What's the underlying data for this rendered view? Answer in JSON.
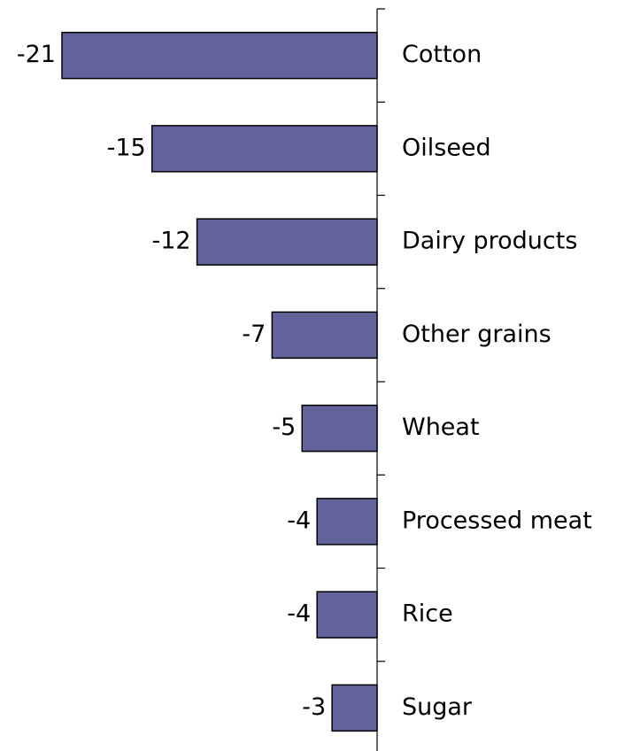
{
  "chart_data": {
    "type": "bar",
    "orientation": "horizontal",
    "categories": [
      "Cotton",
      "Oilseed",
      "Dairy products",
      "Other grains",
      "Wheat",
      "Processed meat",
      "Rice",
      "Sugar"
    ],
    "values": [
      -21,
      -15,
      -12,
      -7,
      -5,
      -4,
      -4,
      -3
    ],
    "color": "#63639b"
  }
}
